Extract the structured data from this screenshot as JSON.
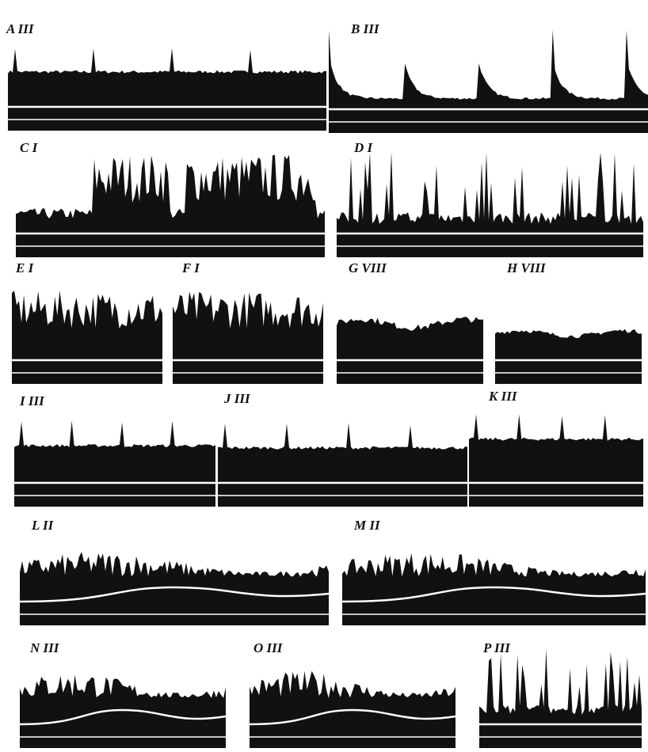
{
  "panels": [
    {
      "label": "A III"
    },
    {
      "label": "B III"
    },
    {
      "label": "C I"
    },
    {
      "label": "D I"
    },
    {
      "label": "E I"
    },
    {
      "label": "F I"
    },
    {
      "label": "G VIII"
    },
    {
      "label": "H VIII"
    },
    {
      "label": "I III"
    },
    {
      "label": "J III"
    },
    {
      "label": "K III"
    },
    {
      "label": "L II"
    },
    {
      "label": "M II"
    },
    {
      "label": "N III"
    },
    {
      "label": "O III"
    },
    {
      "label": "P III"
    }
  ]
}
